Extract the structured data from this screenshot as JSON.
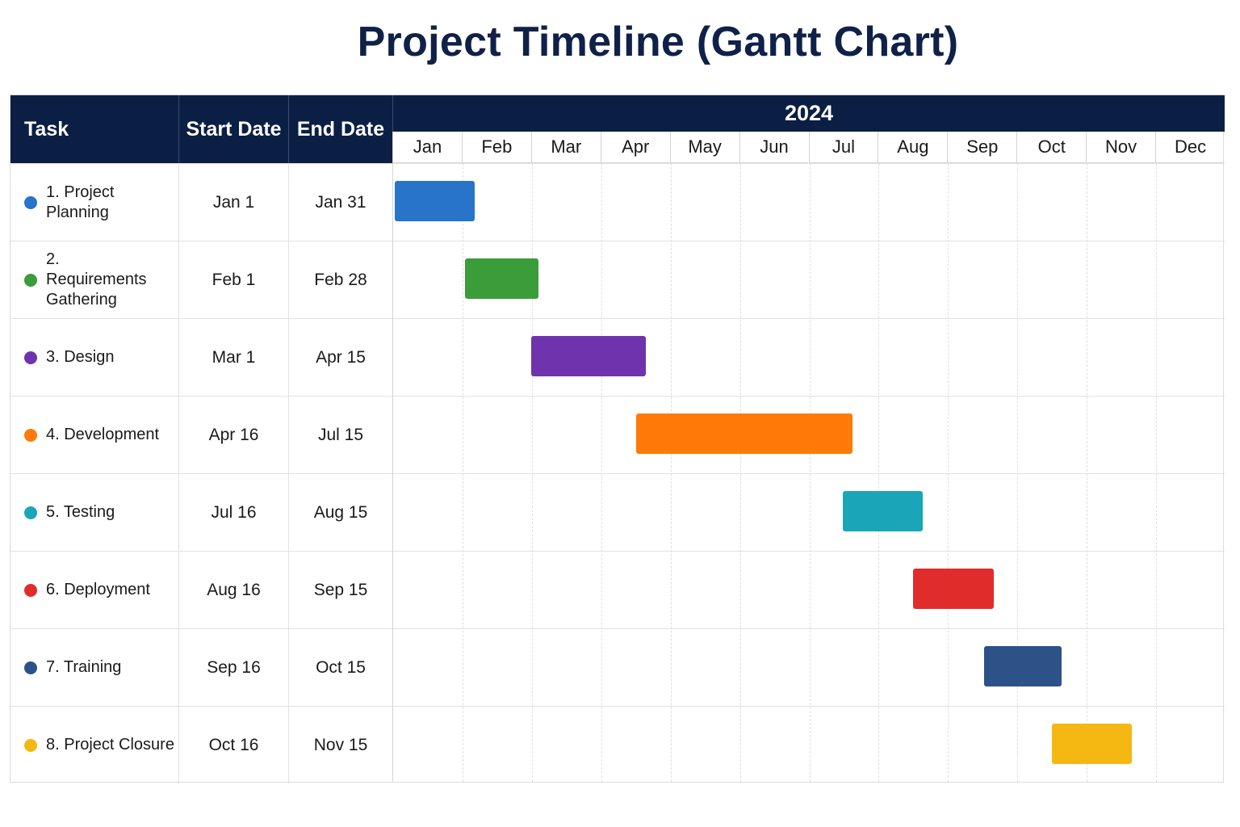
{
  "title": "Project Timeline (Gantt Chart)",
  "header": {
    "task": "Task",
    "start": "Start Date",
    "end": "End Date",
    "year": "2024"
  },
  "chart_data": {
    "type": "gantt",
    "title": "Project Timeline (Gantt Chart)",
    "year": "2024",
    "months": [
      "Jan",
      "Feb",
      "Mar",
      "Apr",
      "May",
      "Jun",
      "Jul",
      "Aug",
      "Sep",
      "Oct",
      "Nov",
      "Dec"
    ],
    "tasks": [
      {
        "name": "1. Project Planning",
        "start": "Jan 1",
        "end": "Jan 31",
        "start_date": "2024-01-01",
        "end_date": "2024-01-31",
        "color": "#2774c8"
      },
      {
        "name": "2. Requirements Gathering",
        "start": "Feb 1",
        "end": "Feb 28",
        "start_date": "2024-02-01",
        "end_date": "2024-02-28",
        "color": "#3b9c3a"
      },
      {
        "name": "3. Design",
        "start": "Mar 1",
        "end": "Apr 15",
        "start_date": "2024-03-01",
        "end_date": "2024-04-15",
        "color": "#6f33ad"
      },
      {
        "name": "4. Development",
        "start": "Apr 16",
        "end": "Jul 15",
        "start_date": "2024-04-16",
        "end_date": "2024-07-15",
        "color": "#ff7a08"
      },
      {
        "name": "5. Testing",
        "start": "Jul 16",
        "end": "Aug 15",
        "start_date": "2024-07-16",
        "end_date": "2024-08-15",
        "color": "#1aa6b8"
      },
      {
        "name": "6. Deployment",
        "start": "Aug 16",
        "end": "Sep 15",
        "start_date": "2024-08-16",
        "end_date": "2024-09-15",
        "color": "#e12c2c"
      },
      {
        "name": "7. Training",
        "start": "Sep 16",
        "end": "Oct 15",
        "start_date": "2024-09-16",
        "end_date": "2024-10-15",
        "color": "#2d5288"
      },
      {
        "name": "8. Project Closure",
        "start": "Oct 16",
        "end": "Nov 15",
        "start_date": "2024-10-16",
        "end_date": "2024-11-15",
        "color": "#f5b813"
      }
    ]
  }
}
